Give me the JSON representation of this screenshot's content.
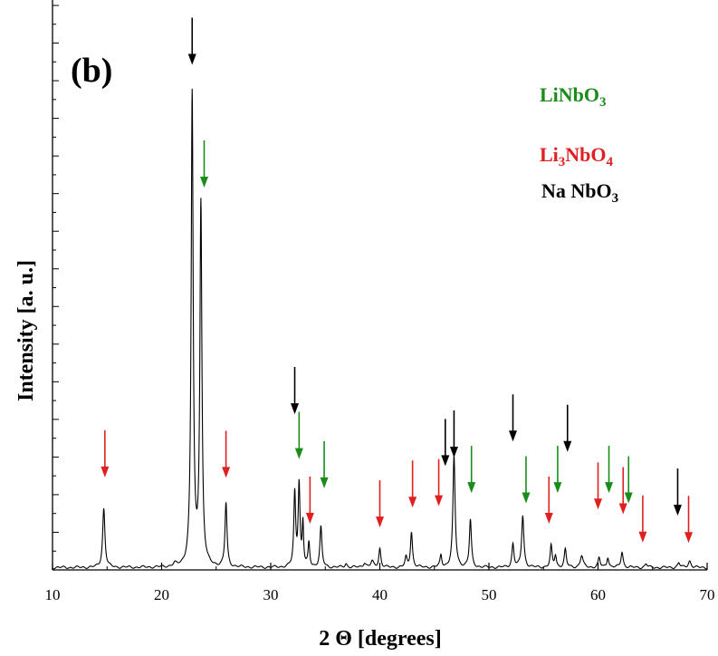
{
  "chart_data": {
    "type": "line",
    "panel_label": "(b)",
    "xlabel": "2 Θ [degrees]",
    "ylabel": "Intensity [a. u.]",
    "xlim": [
      10,
      70
    ],
    "ylim": [
      0,
      1.0
    ],
    "x_ticks": [
      10,
      20,
      30,
      40,
      50,
      60,
      70
    ],
    "y_tick_labels_shown": false,
    "grid": false,
    "legend_position": "top-right",
    "legend": [
      {
        "parts": [
          {
            "t": "LiNbO",
            "s": false
          },
          {
            "t": "3",
            "s": true
          }
        ],
        "color": "#1a8c1a"
      },
      {
        "parts": [
          {
            "t": "Li",
            "s": false
          },
          {
            "t": "3",
            "s": true
          },
          {
            "t": "NbO",
            "s": false
          },
          {
            "t": "4",
            "s": true
          }
        ],
        "color": "#e02020"
      },
      {
        "parts": [
          {
            "t": "Na NbO",
            "s": false
          },
          {
            "t": "3",
            "s": true
          }
        ],
        "color": "#000000"
      }
    ],
    "series_color": "#000000",
    "peaks": [
      {
        "x": 14.7,
        "h": 0.125,
        "w": 0.25
      },
      {
        "x": 21.2,
        "h": 0.005,
        "w": 0.3
      },
      {
        "x": 22.8,
        "h": 1.0,
        "w": 0.22
      },
      {
        "x": 23.6,
        "h": 0.765,
        "w": 0.22
      },
      {
        "x": 25.9,
        "h": 0.135,
        "w": 0.22
      },
      {
        "x": 32.2,
        "h": 0.155,
        "w": 0.2
      },
      {
        "x": 32.6,
        "h": 0.175,
        "w": 0.2
      },
      {
        "x": 32.95,
        "h": 0.09,
        "w": 0.15
      },
      {
        "x": 33.5,
        "h": 0.05,
        "w": 0.18
      },
      {
        "x": 34.6,
        "h": 0.085,
        "w": 0.22
      },
      {
        "x": 36.9,
        "h": 0.008,
        "w": 0.25
      },
      {
        "x": 38.6,
        "h": 0.01,
        "w": 0.3
      },
      {
        "x": 39.3,
        "h": 0.012,
        "w": 0.3
      },
      {
        "x": 40.0,
        "h": 0.04,
        "w": 0.22
      },
      {
        "x": 42.4,
        "h": 0.02,
        "w": 0.22
      },
      {
        "x": 42.9,
        "h": 0.075,
        "w": 0.22
      },
      {
        "x": 45.6,
        "h": 0.025,
        "w": 0.2
      },
      {
        "x": 46.8,
        "h": 0.235,
        "w": 0.24
      },
      {
        "x": 48.3,
        "h": 0.1,
        "w": 0.22
      },
      {
        "x": 52.2,
        "h": 0.05,
        "w": 0.22
      },
      {
        "x": 53.1,
        "h": 0.11,
        "w": 0.24
      },
      {
        "x": 55.7,
        "h": 0.045,
        "w": 0.2
      },
      {
        "x": 56.1,
        "h": 0.025,
        "w": 0.2
      },
      {
        "x": 57.0,
        "h": 0.038,
        "w": 0.22
      },
      {
        "x": 58.5,
        "h": 0.025,
        "w": 0.3
      },
      {
        "x": 60.1,
        "h": 0.02,
        "w": 0.22
      },
      {
        "x": 60.9,
        "h": 0.022,
        "w": 0.22
      },
      {
        "x": 62.2,
        "h": 0.033,
        "w": 0.24
      },
      {
        "x": 64.4,
        "h": 0.008,
        "w": 0.25
      },
      {
        "x": 67.4,
        "h": 0.01,
        "w": 0.25
      },
      {
        "x": 68.4,
        "h": 0.014,
        "w": 0.3
      }
    ],
    "markers": [
      {
        "phase": "NaNbO3",
        "x": 22.8,
        "y_tip": 1.07
      },
      {
        "phase": "LiNbO3",
        "x": 23.9,
        "y_tip": 0.81
      },
      {
        "phase": "Li3NbO4",
        "x": 14.8,
        "y_tip": 0.196
      },
      {
        "phase": "Li3NbO4",
        "x": 25.9,
        "y_tip": 0.195
      },
      {
        "phase": "NaNbO3",
        "x": 32.2,
        "y_tip": 0.33
      },
      {
        "phase": "LiNbO3",
        "x": 32.6,
        "y_tip": 0.235
      },
      {
        "phase": "Li3NbO4",
        "x": 33.6,
        "y_tip": 0.098
      },
      {
        "phase": "LiNbO3",
        "x": 34.9,
        "y_tip": 0.173
      },
      {
        "phase": "Li3NbO4",
        "x": 40.0,
        "y_tip": 0.09
      },
      {
        "phase": "Li3NbO4",
        "x": 43.0,
        "y_tip": 0.132
      },
      {
        "phase": "Li3NbO4",
        "x": 45.4,
        "y_tip": 0.135
      },
      {
        "phase": "NaNbO3",
        "x": 46.0,
        "y_tip": 0.22
      },
      {
        "phase": "NaNbO3",
        "x": 46.8,
        "y_tip": 0.238
      },
      {
        "phase": "LiNbO3",
        "x": 48.4,
        "y_tip": 0.163
      },
      {
        "phase": "NaNbO3",
        "x": 52.2,
        "y_tip": 0.272
      },
      {
        "phase": "LiNbO3",
        "x": 53.4,
        "y_tip": 0.141
      },
      {
        "phase": "Li3NbO4",
        "x": 55.5,
        "y_tip": 0.098
      },
      {
        "phase": "LiNbO3",
        "x": 56.3,
        "y_tip": 0.163
      },
      {
        "phase": "NaNbO3",
        "x": 57.2,
        "y_tip": 0.25
      },
      {
        "phase": "Li3NbO4",
        "x": 60.0,
        "y_tip": 0.128
      },
      {
        "phase": "LiNbO3",
        "x": 61.0,
        "y_tip": 0.163
      },
      {
        "phase": "Li3NbO4",
        "x": 62.3,
        "y_tip": 0.118
      },
      {
        "phase": "LiNbO3",
        "x": 62.8,
        "y_tip": 0.141
      },
      {
        "phase": "Li3NbO4",
        "x": 64.1,
        "y_tip": 0.058
      },
      {
        "phase": "NaNbO3",
        "x": 67.3,
        "y_tip": 0.115
      },
      {
        "phase": "Li3NbO4",
        "x": 68.3,
        "y_tip": 0.057
      }
    ],
    "marker_colors": {
      "LiNbO3": "#1a8c1a",
      "Li3NbO4": "#e02020",
      "NaNbO3": "#000000"
    }
  }
}
